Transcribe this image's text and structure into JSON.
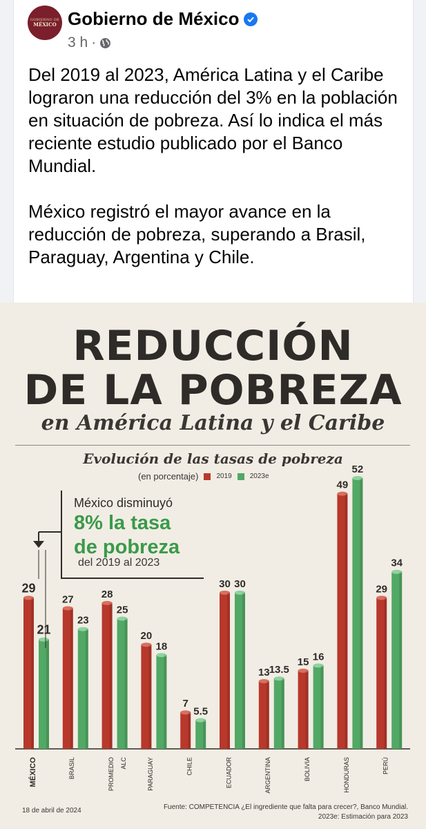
{
  "post": {
    "page_name": "Gobierno de México",
    "avatar_line1": "GOBIERNO DE",
    "avatar_line2": "MÉXICO",
    "time": "3 h",
    "separator": "·",
    "paragraph1": "Del 2019 al 2023, América Latina y el Caribe lograron una reducción del 3% en la población en situación de pobreza. Así lo indica el más reciente estudio publicado por el Banco Mundial.",
    "paragraph2": "México registró el mayor avance en la reducción de pobreza, superando a Brasil, Paraguay, Argentina y Chile.",
    "icons": {
      "verified": "verified-badge-icon",
      "audience": "globe-icon"
    }
  },
  "infographic": {
    "title_line1": "REDUCCIÓN",
    "title_line2": "DE LA POBREZA",
    "subtitle": "en América Latina y el Caribe",
    "callout_line1": "México disminuyó",
    "callout_line2": "8% la tasa",
    "callout_line3": "de pobreza",
    "callout_line4": "del 2019 al 2023",
    "footer_date": "18 de abril de 2024",
    "footer_source": "Fuente: COMPETENCIA ¿El ingrediente que falta para crecer?, Banco Mundial.",
    "footer_note": "2023e: Estimación para 2023",
    "colors": {
      "series_2019": "#b8382c",
      "series_2023e": "#52a865",
      "background": "#f1ede4",
      "accent_green": "#3a9a4a"
    }
  },
  "chart_data": {
    "type": "bar",
    "title": "Evolución de las tasas de pobreza",
    "unit_label": "(en porcentaje)",
    "categories": [
      "MÉXICO",
      "BRASIL",
      "PROMEDIO ALC",
      "PARAGUAY",
      "CHILE",
      "ECUADOR",
      "ARGENTINA",
      "BOLIVIA",
      "HONDURAS",
      "PERÚ"
    ],
    "series": [
      {
        "name": "2019",
        "values": [
          29,
          27,
          28,
          20,
          7,
          30,
          13,
          15,
          49,
          29
        ],
        "labels": [
          "29",
          "27",
          "28",
          "20",
          "7",
          "30",
          "13",
          "15",
          "49",
          "29"
        ]
      },
      {
        "name": "2023e",
        "values": [
          21,
          23,
          25,
          18,
          5.5,
          30,
          13.5,
          16,
          52,
          34
        ],
        "labels": [
          "21",
          "23",
          "25",
          "18",
          "5.5",
          "30",
          "13.5",
          "16",
          "52",
          "34"
        ]
      }
    ],
    "ylim": [
      0,
      52
    ],
    "legend": "top-left",
    "grid": false
  }
}
